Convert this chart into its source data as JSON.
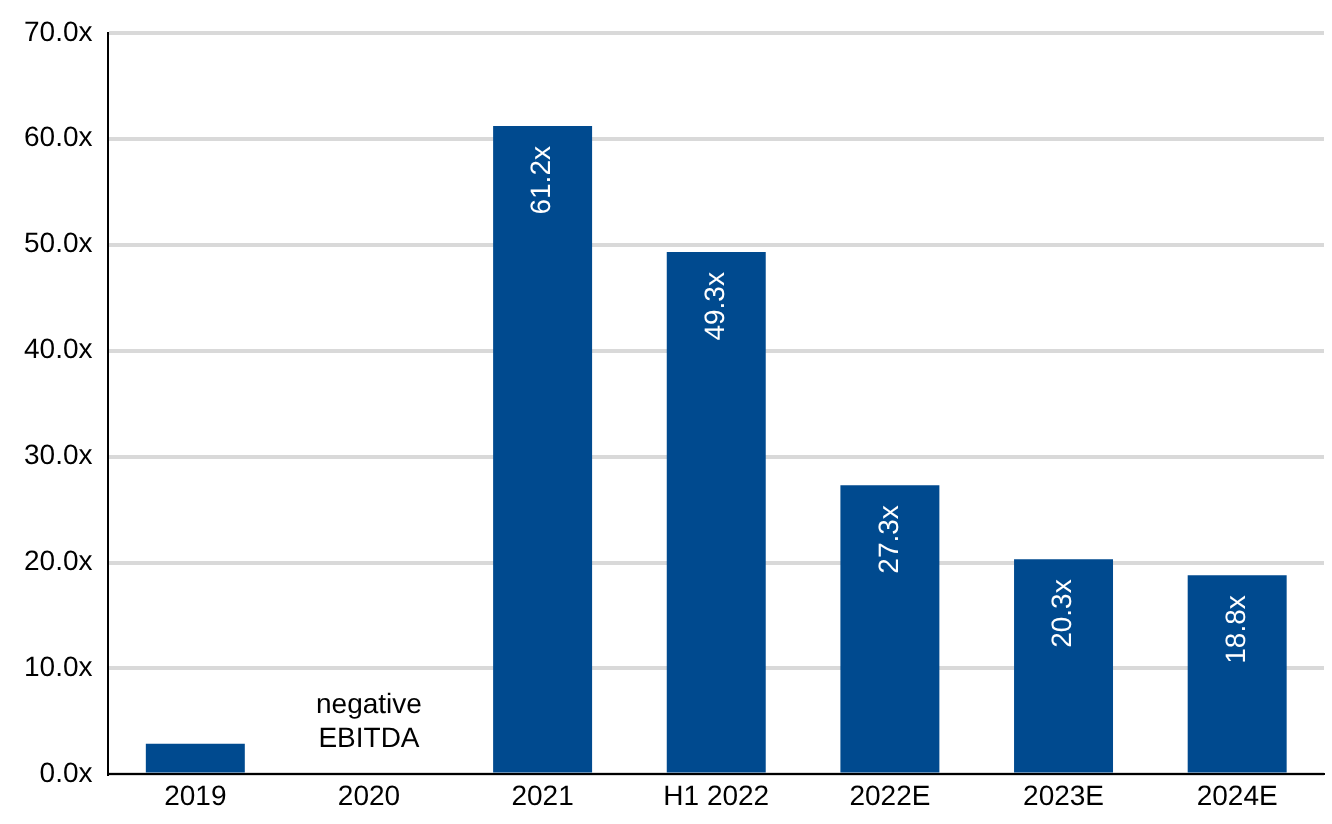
{
  "chart_data": {
    "type": "bar",
    "categories": [
      "2019",
      "2020",
      "2021",
      "H1 2022",
      "2022E",
      "2023E",
      "2024E"
    ],
    "values": [
      2.9,
      null,
      61.2,
      49.3,
      27.3,
      20.3,
      18.8
    ],
    "value_labels": [
      null,
      null,
      "61.2x",
      "49.3x",
      "27.3x",
      "20.3x",
      "18.8x"
    ],
    "color": "#004a8f",
    "ylim": [
      0,
      70
    ],
    "yticks": [
      {
        "value": 0,
        "label": "0.0x"
      },
      {
        "value": 10,
        "label": "10.0x"
      },
      {
        "value": 20,
        "label": "20.0x"
      },
      {
        "value": 30,
        "label": "30.0x"
      },
      {
        "value": 40,
        "label": "40.0x"
      },
      {
        "value": 50,
        "label": "50.0x"
      },
      {
        "value": 60,
        "label": "60.0x"
      },
      {
        "value": 70,
        "label": "70.0x"
      }
    ],
    "grid": "y",
    "annotations": [
      "negative\nEBITDA"
    ]
  }
}
